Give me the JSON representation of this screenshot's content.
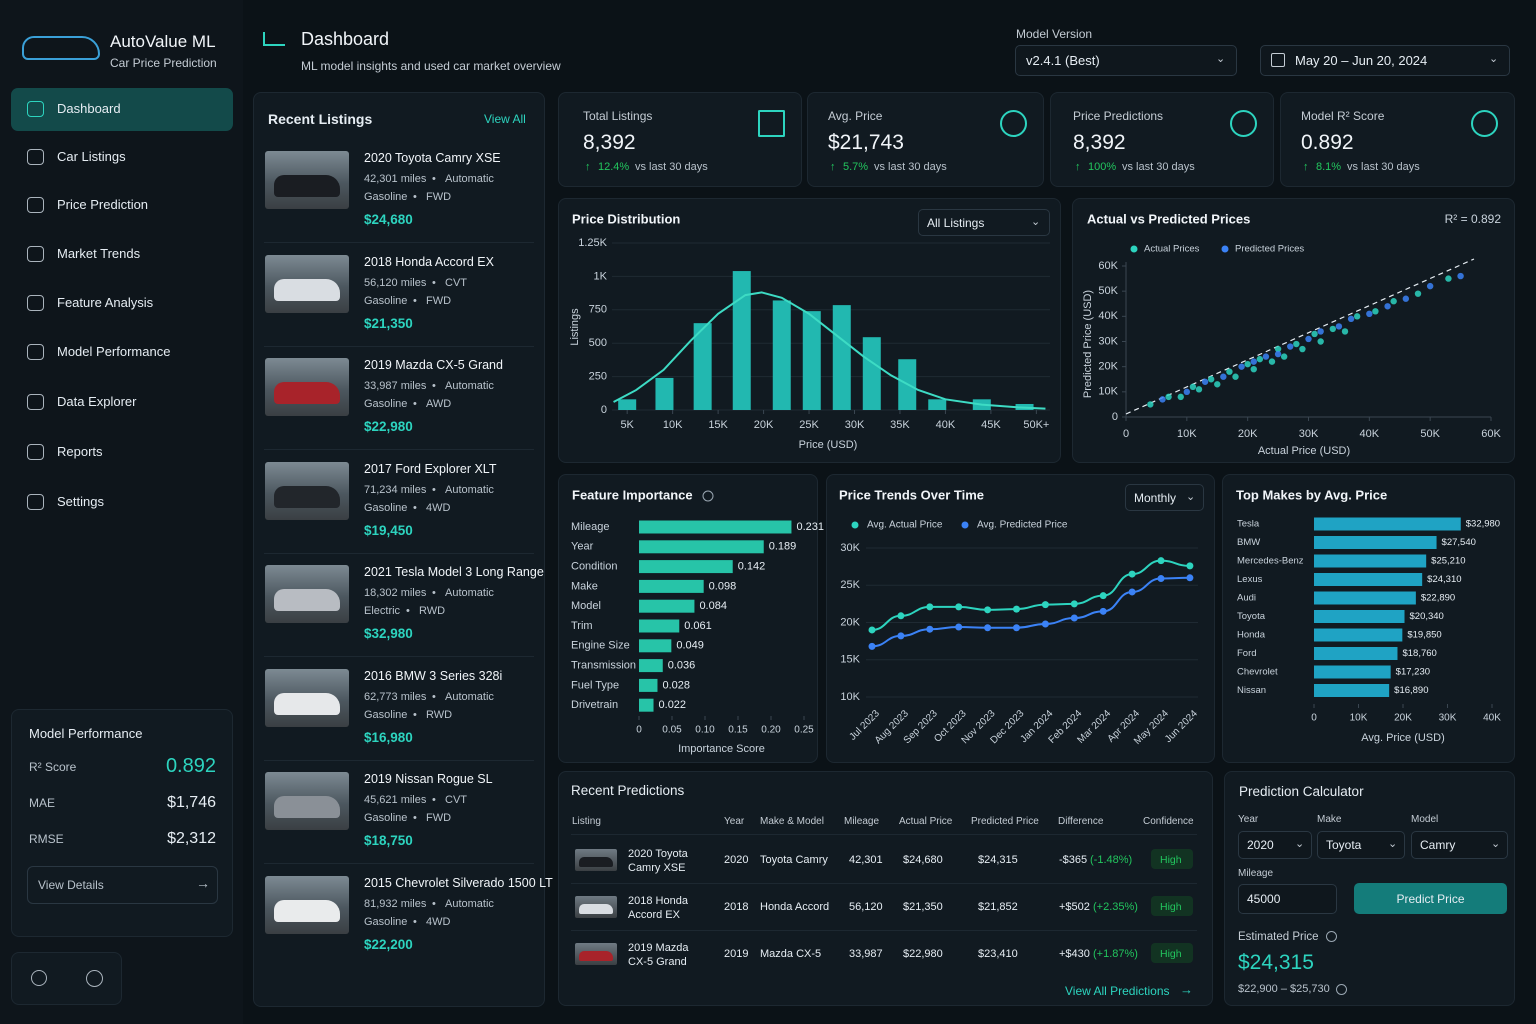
{
  "sidebar": {
    "brand": "AutoValue ML",
    "tagline": "Car Price Prediction",
    "nav": [
      "Dashboard",
      "Car Listings",
      "Price Prediction",
      "Market Trends",
      "Feature Analysis",
      "Model Performance",
      "Data Explorer",
      "Reports",
      "Settings"
    ],
    "model_performance": {
      "title": "Model Performance",
      "metrics": [
        {
          "label": "R² Score",
          "value": "0.892"
        },
        {
          "label": "MAE",
          "value": "$1,746"
        },
        {
          "label": "RMSE",
          "value": "$2,312"
        }
      ],
      "button": "View Details"
    }
  },
  "header": {
    "title": "Dashboard",
    "subtitle": "ML model insights and used car market overview",
    "model_version_label": "Model Version",
    "model_version": "v2.4.1 (Best)",
    "date_range": "May 20 – Jun 20, 2024"
  },
  "recent_listings": {
    "title": "Recent Listings",
    "view_all": "View All",
    "items": [
      {
        "name": "2020 Toyota Camry XSE",
        "mileage": "42,301 miles",
        "transmission": "Automatic",
        "fuel": "Gasoline",
        "drive": "FWD",
        "price": "$24,680"
      },
      {
        "name": "2018 Honda Accord EX",
        "mileage": "56,120 miles",
        "transmission": "CVT",
        "fuel": "Gasoline",
        "drive": "FWD",
        "price": "$21,350"
      },
      {
        "name": "2019 Mazda CX-5 Grand",
        "mileage": "33,987 miles",
        "transmission": "Automatic",
        "fuel": "Gasoline",
        "drive": "AWD",
        "price": "$22,980"
      },
      {
        "name": "2017 Ford Explorer XLT",
        "mileage": "71,234 miles",
        "transmission": "Automatic",
        "fuel": "Gasoline",
        "drive": "4WD",
        "price": "$19,450"
      },
      {
        "name": "2021 Tesla Model 3 Long Range",
        "mileage": "18,302 miles",
        "transmission": "Automatic",
        "fuel": "Electric",
        "drive": "RWD",
        "price": "$32,980"
      },
      {
        "name": "2016 BMW 3 Series 328i",
        "mileage": "62,773 miles",
        "transmission": "Automatic",
        "fuel": "Gasoline",
        "drive": "RWD",
        "price": "$16,980"
      },
      {
        "name": "2019 Nissan Rogue SL",
        "mileage": "45,621 miles",
        "transmission": "CVT",
        "fuel": "Gasoline",
        "drive": "FWD",
        "price": "$18,750"
      },
      {
        "name": "2015 Chevrolet Silverado 1500 LT",
        "mileage": "81,932 miles",
        "transmission": "Automatic",
        "fuel": "Gasoline",
        "drive": "4WD",
        "price": "$22,200"
      }
    ]
  },
  "kpis": [
    {
      "label": "Total Listings",
      "value": "8,392",
      "change": "12.4%",
      "change_text": "vs last 30 days"
    },
    {
      "label": "Avg. Price",
      "value": "$21,743",
      "change": "5.7%",
      "change_text": "vs last 30 days"
    },
    {
      "label": "Price Predictions",
      "value": "8,392",
      "change": "100%",
      "change_text": "vs last 30 days"
    },
    {
      "label": "Model R² Score",
      "value": "0.892",
      "change": "8.1%",
      "change_text": "vs last 30 days"
    }
  ],
  "price_distribution": {
    "type": "histogram",
    "title": "Price Distribution",
    "filter": "All Listings",
    "x_label": "Price (USD)",
    "y_label": "Listings",
    "color": "#22b8b0",
    "x": [
      5000,
      9100,
      13300,
      17600,
      22000,
      25300,
      28600,
      31900,
      35800,
      39100,
      44000,
      48700
    ],
    "values": [
      80,
      240,
      650,
      1040,
      820,
      740,
      785,
      545,
      380,
      80,
      80,
      45
    ],
    "curve": {
      "color": "#3ddbc4",
      "x": [
        3500,
        6000,
        9000,
        12000,
        15000,
        18000,
        19800,
        22000,
        25000,
        28000,
        31000,
        34000,
        37000,
        40000,
        44000,
        48000,
        51000
      ],
      "y": [
        60,
        150,
        300,
        520,
        720,
        860,
        880,
        840,
        720,
        560,
        400,
        260,
        150,
        80,
        40,
        20,
        10
      ]
    },
    "xlim": [
      3000,
      51500
    ],
    "xticks": [
      {
        "value": 5000,
        "label": "5K"
      },
      {
        "value": 10000,
        "label": "10K"
      },
      {
        "value": 15000,
        "label": "15K"
      },
      {
        "value": 20000,
        "label": "20K"
      },
      {
        "value": 25000,
        "label": "25K"
      },
      {
        "value": 30000,
        "label": "30K"
      },
      {
        "value": 35000,
        "label": "35K"
      },
      {
        "value": 40000,
        "label": "40K"
      },
      {
        "value": 45000,
        "label": "45K"
      },
      {
        "value": 50000,
        "label": "50K+"
      }
    ],
    "ylim": [
      0,
      1250
    ],
    "yticks": [
      0,
      250,
      500,
      750,
      {
        "value": 1000,
        "label": "1K"
      },
      {
        "value": 1250,
        "label": "1.25K"
      }
    ]
  },
  "actual_vs_predicted": {
    "type": "scatter",
    "title": "Actual vs Predicted Prices",
    "annotation": "R² = 0.892",
    "x_label": "Actual Price (USD)",
    "y_label": "Predicted Price (USD)",
    "series": [
      {
        "name": "Actual Prices",
        "color": "#2dd4bf",
        "x": [
          4000,
          7000,
          9000,
          11000,
          12000,
          14000,
          15000,
          17000,
          18000,
          20000,
          21000,
          22000,
          24000,
          25000,
          26000,
          28000,
          29000,
          31000,
          32000,
          34000,
          36000,
          38000,
          41000,
          44000,
          48000,
          53000
        ],
        "y": [
          5000,
          8000,
          8000,
          12000,
          11000,
          15000,
          13000,
          18000,
          16000,
          21000,
          19000,
          23000,
          22000,
          27000,
          24000,
          29000,
          27000,
          33000,
          30000,
          35000,
          34000,
          40000,
          42000,
          46000,
          49000,
          55000
        ]
      },
      {
        "name": "Predicted Prices",
        "color": "#3b82f6",
        "x": [
          6000,
          10000,
          13000,
          16000,
          19000,
          21000,
          23000,
          25000,
          27000,
          30000,
          32000,
          35000,
          37000,
          40000,
          43000,
          46000,
          50000,
          55000
        ],
        "y": [
          7000,
          10000,
          14000,
          16000,
          20000,
          22000,
          24000,
          25000,
          28000,
          31000,
          34000,
          36000,
          39000,
          41000,
          44000,
          47000,
          52000,
          56000
        ]
      }
    ],
    "xlim": [
      0,
      60000
    ],
    "xticks": [
      0,
      {
        "value": 10000,
        "label": "10K"
      },
      {
        "value": 20000,
        "label": "20K"
      },
      {
        "value": 30000,
        "label": "30K"
      },
      {
        "value": 40000,
        "label": "40K"
      },
      {
        "value": 50000,
        "label": "50K"
      },
      {
        "value": 60000,
        "label": "60K"
      }
    ],
    "ylim": [
      0,
      60000
    ],
    "yticks": [
      0,
      {
        "value": 10000,
        "label": "10K"
      },
      {
        "value": 20000,
        "label": "20K"
      },
      {
        "value": 30000,
        "label": "30K"
      },
      {
        "value": 40000,
        "label": "40K"
      },
      {
        "value": 50000,
        "label": "50K"
      },
      {
        "value": 60000,
        "label": "60K"
      }
    ]
  },
  "feature_importance": {
    "type": "bar",
    "orientation": "horizontal",
    "title": "Feature Importance",
    "x_label": "Importance Score",
    "color": "#27c4a8",
    "categories": [
      "Mileage",
      "Year",
      "Condition",
      "Make",
      "Model",
      "Trim",
      "Engine Size",
      "Transmission",
      "Fuel Type",
      "Drivetrain"
    ],
    "values": [
      0.231,
      0.189,
      0.142,
      0.098,
      0.084,
      0.061,
      0.049,
      0.036,
      0.028,
      0.022
    ],
    "xlim": [
      0,
      0.25
    ],
    "xticks": [
      0,
      0.05,
      {
        "value": 0.1,
        "label": "0.10"
      },
      0.15,
      {
        "value": 0.2,
        "label": "0.20"
      },
      0.25
    ]
  },
  "price_trends": {
    "type": "line",
    "title": "Price Trends Over Time",
    "interval": "Monthly",
    "categories": [
      "Jul 2023",
      "Aug 2023",
      "Sep 2023",
      "Oct 2023",
      "Nov 2023",
      "Dec 2023",
      "Jan 2024",
      "Feb 2024",
      "Mar 2024",
      "Apr 2024",
      "May 2024",
      "Jun 2024"
    ],
    "series": [
      {
        "name": "Avg. Actual Price",
        "color": "#2dd4bf",
        "values": [
          19000,
          20900,
          22100,
          22100,
          21700,
          21800,
          22400,
          22500,
          23600,
          26500,
          28300,
          27600
        ]
      },
      {
        "name": "Avg. Predicted Price",
        "color": "#3b82f6",
        "values": [
          16800,
          18200,
          19100,
          19400,
          19300,
          19300,
          19800,
          20600,
          21500,
          24100,
          25900,
          26000
        ]
      }
    ],
    "ylim": [
      10000,
      30000
    ],
    "yticks": [
      {
        "value": 10000,
        "label": "10K"
      },
      {
        "value": 15000,
        "label": "15K"
      },
      {
        "value": 20000,
        "label": "20K"
      },
      {
        "value": 25000,
        "label": "25K"
      },
      {
        "value": 30000,
        "label": "30K"
      }
    ]
  },
  "top_makes": {
    "type": "bar",
    "orientation": "horizontal",
    "title": "Top Makes by Avg. Price",
    "x_label": "Avg. Price (USD)",
    "color": "#1fa3c4",
    "categories": [
      "Tesla",
      "BMW",
      "Mercedes-Benz",
      "Lexus",
      "Audi",
      "Toyota",
      "Honda",
      "Ford",
      "Chevrolet",
      "Nissan"
    ],
    "values": [
      32980,
      27540,
      25210,
      24310,
      22890,
      20340,
      19850,
      18760,
      17230,
      16890
    ],
    "value_labels": [
      "$32,980",
      "$27,540",
      "$25,210",
      "$24,310",
      "$22,890",
      "$20,340",
      "$19,850",
      "$18,760",
      "$17,230",
      "$16,890"
    ],
    "xlim": [
      0,
      40000
    ],
    "xticks": [
      0,
      {
        "value": 10000,
        "label": "10K"
      },
      {
        "value": 20000,
        "label": "20K"
      },
      {
        "value": 30000,
        "label": "30K"
      },
      {
        "value": 40000,
        "label": "40K"
      }
    ]
  },
  "recent_predictions": {
    "title": "Recent Predictions",
    "columns": [
      "Listing",
      "Year",
      "Make & Model",
      "Mileage",
      "Actual Price",
      "Predicted Price",
      "Difference",
      "Confidence"
    ],
    "rows": [
      {
        "listing": "2020 Toyota Camry XSE",
        "year": "2020",
        "make_model": "Toyota Camry",
        "mileage": "42,301",
        "actual": "$24,680",
        "predicted": "$24,315",
        "difference": "-$365",
        "difference_pct": "(-1.48%)",
        "confidence": "High"
      },
      {
        "listing": "2018 Honda Accord EX",
        "year": "2018",
        "make_model": "Honda Accord",
        "mileage": "56,120",
        "actual": "$21,350",
        "predicted": "$21,852",
        "difference": "+$502",
        "difference_pct": "(+2.35%)",
        "confidence": "High"
      },
      {
        "listing": "2019 Mazda CX-5 Grand",
        "year": "2019",
        "make_model": "Mazda CX-5",
        "mileage": "33,987",
        "actual": "$22,980",
        "predicted": "$23,410",
        "difference": "+$430",
        "difference_pct": "(+1.87%)",
        "confidence": "High"
      }
    ],
    "footer_link": "View All Predictions"
  },
  "calculator": {
    "title": "Prediction Calculator",
    "fields": [
      {
        "label": "Year",
        "value": "2020"
      },
      {
        "label": "Make",
        "value": "Toyota"
      },
      {
        "label": "Model",
        "value": "Camry"
      },
      {
        "label": "Mileage",
        "value": "45000"
      }
    ],
    "button": "Predict Price",
    "estimate_label": "Estimated Price",
    "estimate": "$24,315",
    "range": "$22,900 – $25,730"
  }
}
